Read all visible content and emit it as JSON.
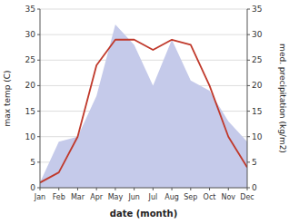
{
  "chart_data": {
    "type": "line",
    "categories": [
      "Jan",
      "Feb",
      "Mar",
      "Apr",
      "May",
      "Jun",
      "Jul",
      "Aug",
      "Sep",
      "Oct",
      "Nov",
      "Dec"
    ],
    "series": [
      {
        "type": "area",
        "axis": "y2",
        "color": "#c5caea",
        "values": [
          1,
          9,
          10,
          18,
          32,
          28,
          20,
          29,
          21,
          19,
          13,
          9
        ]
      },
      {
        "type": "line",
        "color": "#c0392b",
        "values": [
          1,
          3,
          10,
          24,
          29,
          29,
          27,
          29,
          28,
          20,
          10,
          4
        ]
      }
    ],
    "xlabel": "date (month)",
    "ylabel": "max temp (C)",
    "y2label": "med. precipitation (kg/m2)",
    "ylim": [
      0,
      35
    ],
    "yticks": [
      0,
      5,
      10,
      15,
      20,
      25,
      30,
      35
    ],
    "y2lim": [
      0,
      35
    ],
    "y2ticks": [
      0,
      5,
      10,
      15,
      20,
      25,
      30,
      35
    ],
    "grid": true
  }
}
